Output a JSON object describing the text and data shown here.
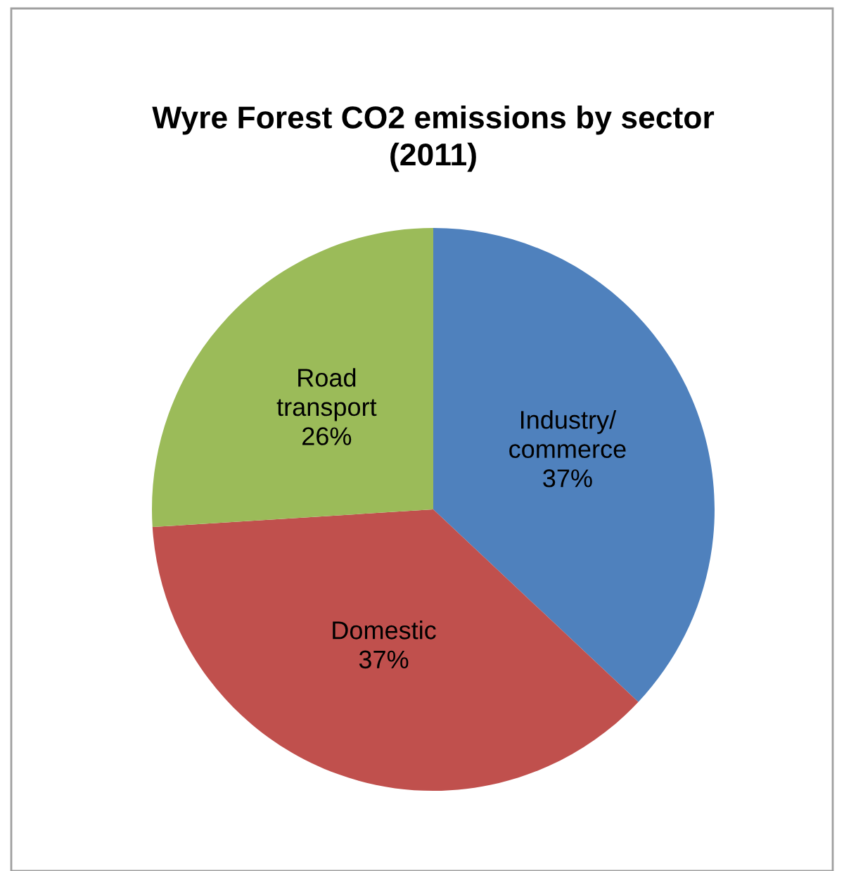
{
  "chart_data": {
    "type": "pie",
    "title": "Wyre Forest CO2 emissions by sector\n(2011)",
    "categories": [
      "Industry/\ncommerce",
      "Domestic",
      "Road\ntransport"
    ],
    "values": [
      37,
      37,
      26
    ],
    "colors": [
      "#4f81bd",
      "#c0504d",
      "#9bbb59"
    ],
    "value_labels": [
      "37%",
      "37%",
      "26%"
    ],
    "legend": false
  }
}
